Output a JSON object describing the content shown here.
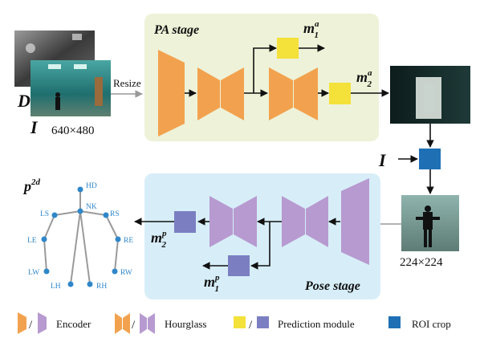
{
  "input": {
    "depth_label": "D",
    "image_label": "I",
    "size": "640×480",
    "resize_label": "Resize"
  },
  "pa_stage": {
    "title": "PA stage",
    "out1_base": "m",
    "out1_sup": "a",
    "out1_sub": "1",
    "out2_base": "m",
    "out2_sup": "a",
    "out2_sub": "2"
  },
  "roi": {
    "image_label": "I",
    "crop_size": "224×224"
  },
  "pose_stage": {
    "title": "Pose stage",
    "out1_base": "m",
    "out1_sup": "p",
    "out1_sub": "1",
    "out2_base": "m",
    "out2_sup": "p",
    "out2_sub": "2"
  },
  "skeleton": {
    "title_base": "p",
    "title_sup": "2d",
    "joints": [
      "HD",
      "NK",
      "LS",
      "RS",
      "LE",
      "RE",
      "LW",
      "RW",
      "LH",
      "RH"
    ]
  },
  "legend": {
    "encoder": "Encoder",
    "hourglass": "Hourglass",
    "prediction": "Prediction module",
    "roi_crop": "ROI crop",
    "slash": "/"
  },
  "colors": {
    "pa_bg": "#eef2d8",
    "pose_bg": "#d7eef8",
    "orange": "#f2a24e",
    "yellow": "#f4e13a",
    "purple": "#b79ad0",
    "pred_blue": "#7b7fc1",
    "roi_blue": "#1f6fb5",
    "joint_blue": "#2f87c9"
  }
}
